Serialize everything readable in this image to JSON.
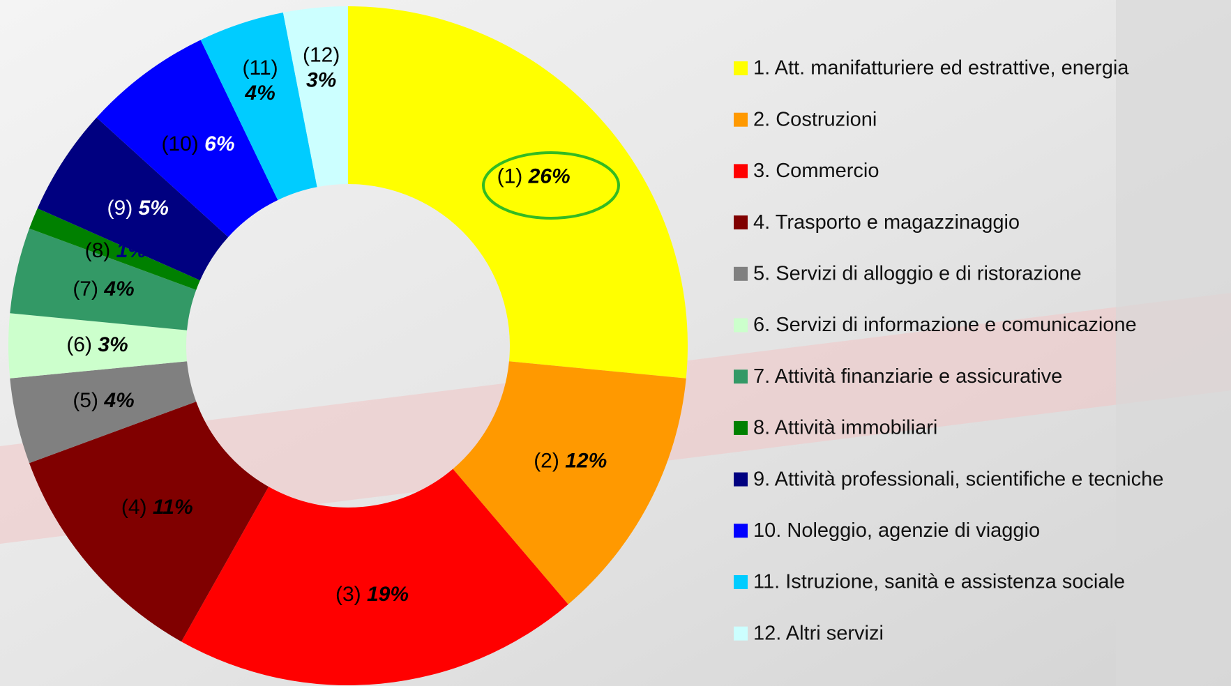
{
  "chart_data": {
    "type": "donut",
    "categories": [
      "1. Att. manifatturiere ed estrattive, energia",
      "2. Costruzioni",
      "3. Commercio",
      "4. Trasporto e magazzinaggio",
      "5. Servizi di alloggio e di ristorazione",
      "6. Servizi di informazione e comunicazione",
      "7. Attività finanziarie e assicurative",
      "8. Attività immobiliari",
      "9. Attività professionali, scientifiche e tecniche",
      "10. Noleggio, agenzie di viaggio",
      "11. Istruzione, sanità e assistenza sociale",
      "12. Altri servizi"
    ],
    "slice_labels": [
      "(1)",
      "(2)",
      "(3)",
      "(4)",
      "(5)",
      "(6)",
      "(7)",
      "(8)",
      "(9)",
      "(10)",
      "(11)",
      "(12)"
    ],
    "values": [
      26,
      12,
      19,
      11,
      4,
      3,
      4,
      1,
      5,
      6,
      4,
      3
    ],
    "value_labels": [
      "26%",
      "12%",
      "19%",
      "11%",
      "4%",
      "3%",
      "4%",
      "1%",
      "5%",
      "6%",
      "4%",
      "3%"
    ],
    "colors": [
      "#ffff00",
      "#ff9900",
      "#ff0000",
      "#800000",
      "#808080",
      "#ccffcc",
      "#339966",
      "#008000",
      "#000080",
      "#0000ff",
      "#00ccff",
      "#ccffff"
    ],
    "label_colors": [
      "#000000",
      "#000000",
      "#000000",
      "#000000",
      "#000000",
      "#000000",
      "#000000",
      "#000000",
      "#ffffff",
      "#000000",
      "#000000",
      "#000000"
    ],
    "value_label_colors": [
      "#000000",
      "#000000",
      "#000000",
      "#000000",
      "#000000",
      "#000000",
      "#000000",
      "#000080",
      "#ffffff",
      "#ffffff",
      "#000000",
      "#000000"
    ],
    "legend": "right"
  }
}
